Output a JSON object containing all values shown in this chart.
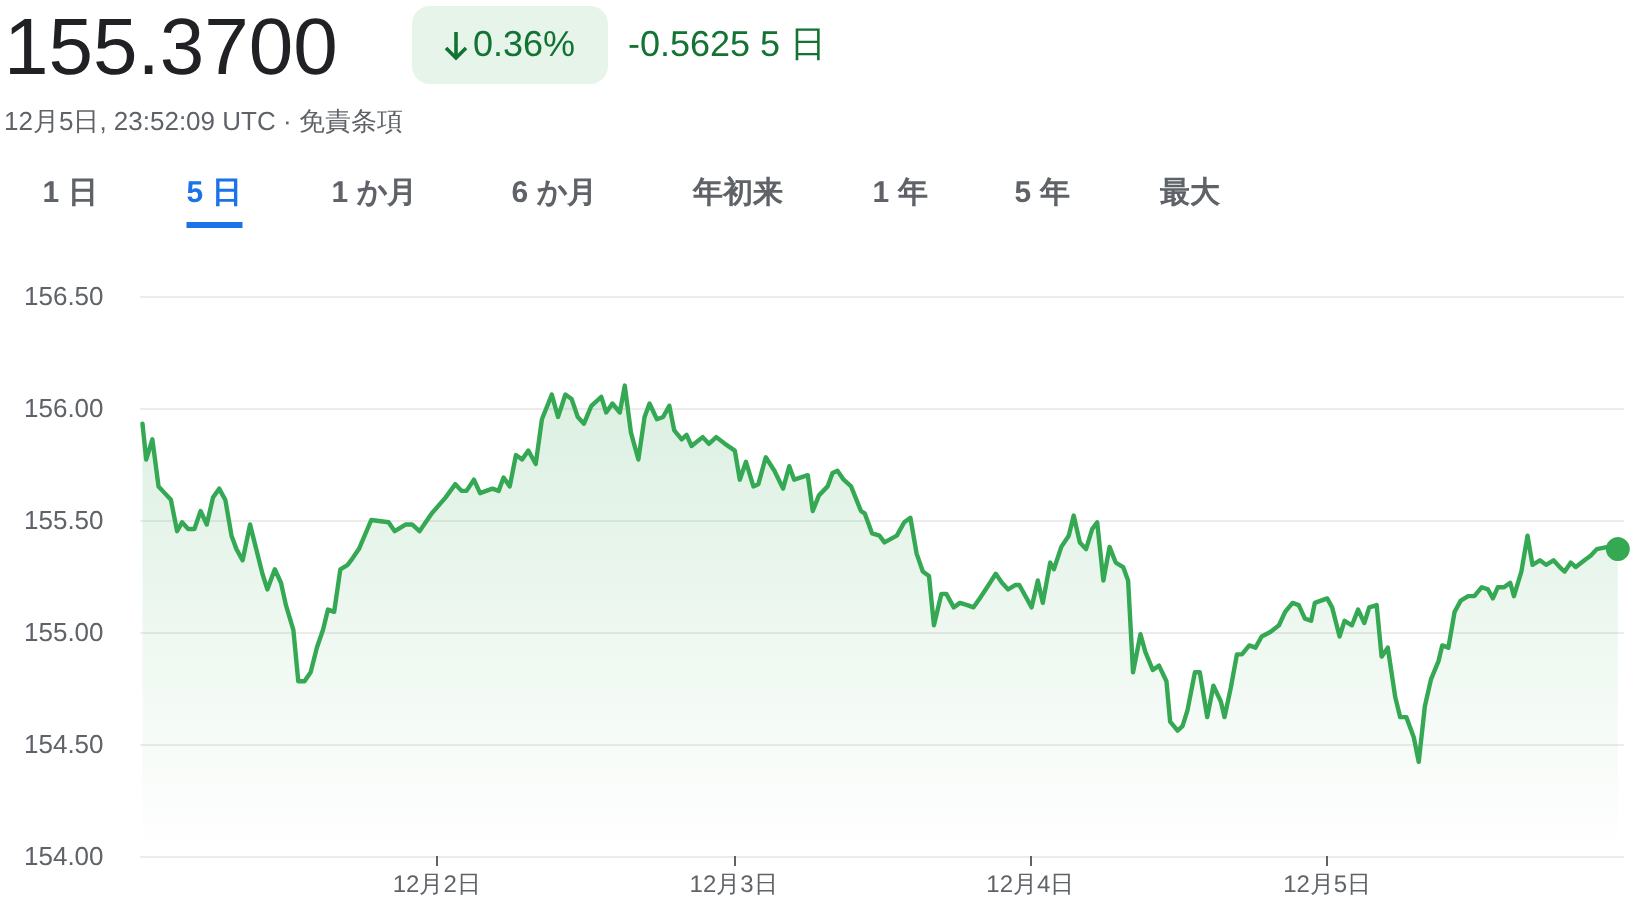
{
  "chart_data": {
    "type": "area",
    "title": "155.3700",
    "subtitle": "12月5日, 23:52:09 UTC · 免責条項",
    "annotations": [
      "0.36%",
      "-0.5625 5 日",
      "1 日",
      "5 日",
      "1 か月",
      "6 か月",
      "年初来",
      "1 年",
      "5 年",
      "最大"
    ],
    "xlim": [
      "--12-01T00:00",
      "--12-06T00:00"
    ],
    "xticks": [
      {
        "value": "--12-02",
        "label": "12月2日"
      },
      {
        "value": "--12-03",
        "label": "12月3日"
      },
      {
        "value": "--12-04",
        "label": "12月4日"
      },
      {
        "value": "--12-05",
        "label": "12月5日"
      }
    ],
    "ylim": [
      154,
      156.5
    ],
    "yticks": [
      {
        "value": 154,
        "label": "154.00"
      },
      {
        "value": 154.5,
        "label": "154.50"
      },
      {
        "value": 155,
        "label": "155.00"
      },
      {
        "value": 155.5,
        "label": "155.50"
      },
      {
        "value": 156,
        "label": "156.00"
      },
      {
        "value": 156.5,
        "label": "156.50"
      }
    ],
    "grid": "y",
    "marker": "none",
    "line_style": "solid",
    "series": [
      {
        "color": "#34a853",
        "x": [
          "--12-01T00:12",
          "--12-01T00:30",
          "--12-01T01:00",
          "--12-01T01:30",
          "--12-01T02:00",
          "--12-01T02:30",
          "--12-01T03:00",
          "--12-01T03:24",
          "--12-01T03:54",
          "--12-01T04:24",
          "--12-01T04:54",
          "--12-01T05:24",
          "--12-01T05:54",
          "--12-01T06:24",
          "--12-01T06:54",
          "--12-01T07:24",
          "--12-01T07:48",
          "--12-01T08:18",
          "--12-01T08:54",
          "--12-01T09:24",
          "--12-01T09:54",
          "--12-01T10:18",
          "--12-01T10:54",
          "--12-01T11:24",
          "--12-01T11:48",
          "--12-01T12:24",
          "--12-01T12:48",
          "--12-01T13:18",
          "--12-01T13:48",
          "--12-01T14:18",
          "--12-01T14:48",
          "--12-01T15:12",
          "--12-01T15:42",
          "--12-01T16:12",
          "--12-01T16:48",
          "--12-01T17:12",
          "--12-01T17:42",
          "--12-01T18:42",
          "--12-01T20:06",
          "--12-01T20:36",
          "--12-01T21:30",
          "--12-01T22:00",
          "--12-01T22:36",
          "--12-01T23:36",
          "--12-02T00:42",
          "--12-02T01:30",
          "--12-02T02:00",
          "--12-02T02:24",
          "--12-02T03:00",
          "--12-02T03:30",
          "--12-02T04:30",
          "--12-02T05:00",
          "--12-02T05:24",
          "--12-02T05:54",
          "--12-02T06:24",
          "--12-02T06:54",
          "--12-02T07:24",
          "--12-02T08:00",
          "--12-02T08:30",
          "--12-02T09:18",
          "--12-02T09:48",
          "--12-02T10:24",
          "--12-02T10:54",
          "--12-02T11:24",
          "--12-02T11:54",
          "--12-02T12:30",
          "--12-02T13:18",
          "--12-02T13:42",
          "--12-02T14:12",
          "--12-02T14:48",
          "--12-02T15:12",
          "--12-02T15:42",
          "--12-02T16:18",
          "--12-02T16:48",
          "--12-02T17:12",
          "--12-02T17:48",
          "--12-02T18:18",
          "--12-02T18:48",
          "--12-02T19:12",
          "--12-02T19:48",
          "--12-02T20:12",
          "--12-02T20:36",
          "--12-02T21:30",
          "--12-02T22:00",
          "--12-02T22:36",
          "--12-02T23:18",
          "--12-03T00:06",
          "--12-03T00:30",
          "--12-03T01:00",
          "--12-03T01:36",
          "--12-03T02:00",
          "--12-03T02:36",
          "--12-03T03:18",
          "--12-03T04:00",
          "--12-03T04:30",
          "--12-03T04:54",
          "--12-03T06:00",
          "--12-03T06:24",
          "--12-03T06:54",
          "--12-03T07:36",
          "--12-03T08:00",
          "--12-03T08:24",
          "--12-03T08:54",
          "--12-03T09:30",
          "--12-03T10:18",
          "--12-03T10:36",
          "--12-03T11:12",
          "--12-03T11:48",
          "--12-03T12:12",
          "--12-03T13:12",
          "--12-03T13:48",
          "--12-03T14:18",
          "--12-03T14:48",
          "--12-03T15:18",
          "--12-03T15:48",
          "--12-03T16:12",
          "--12-03T16:48",
          "--12-03T17:12",
          "--12-03T17:48",
          "--12-03T18:18",
          "--12-03T18:54",
          "--12-03T19:24",
          "--12-03T19:54",
          "--12-03T20:30",
          "--12-03T21:12",
          "--12-03T21:42",
          "--12-03T22:12",
          "--12-03T22:48",
          "--12-03T23:06",
          "--12-03T23:42",
          "--12-04T00:06",
          "--12-04T00:36",
          "--12-04T01:00",
          "--12-04T01:36",
          "--12-04T01:54",
          "--12-04T02:30",
          "--12-04T03:06",
          "--12-04T03:30",
          "--12-04T04:00",
          "--12-04T04:30",
          "--12-04T05:00",
          "--12-04T05:24",
          "--12-04T05:54",
          "--12-04T06:24",
          "--12-04T06:54",
          "--12-04T07:30",
          "--12-04T07:54",
          "--12-04T08:18",
          "--12-04T08:54",
          "--12-04T09:18",
          "--12-04T09:54",
          "--12-04T10:24",
          "--12-04T11:00",
          "--12-04T11:18",
          "--12-04T11:54",
          "--12-04T12:18",
          "--12-04T12:42",
          "--12-04T13:18",
          "--12-04T13:42",
          "--12-04T14:18",
          "--12-04T14:48",
          "--12-04T15:24",
          "--12-04T15:42",
          "--12-04T16:12",
          "--12-04T16:42",
          "--12-04T17:06",
          "--12-04T17:42",
          "--12-04T18:12",
          "--12-04T18:42",
          "--12-04T19:24",
          "--12-04T20:06",
          "--12-04T20:36",
          "--12-04T21:12",
          "--12-04T21:42",
          "--12-04T22:12",
          "--12-04T22:42",
          "--12-04T23:00",
          "--12-05T00:00",
          "--12-05T00:24",
          "--12-05T01:00",
          "--12-05T01:24",
          "--12-05T02:00",
          "--12-05T02:30",
          "--12-05T03:00",
          "--12-05T03:24",
          "--12-05T04:00",
          "--12-05T04:24",
          "--12-05T04:54",
          "--12-05T05:30",
          "--12-05T05:54",
          "--12-05T06:24",
          "--12-05T07:00",
          "--12-05T07:24",
          "--12-05T07:54",
          "--12-05T08:24",
          "--12-05T09:00",
          "--12-05T09:18",
          "--12-05T09:48",
          "--12-05T10:18",
          "--12-05T10:48",
          "--12-05T11:24",
          "--12-05T11:54",
          "--12-05T12:30",
          "--12-05T13:00",
          "--12-05T13:24",
          "--12-05T13:48",
          "--12-05T14:18",
          "--12-05T14:48",
          "--12-05T15:06",
          "--12-05T15:42",
          "--12-05T16:12",
          "--12-05T16:36",
          "--12-05T17:12",
          "--12-05T17:42",
          "--12-05T18:18",
          "--12-05T18:48",
          "--12-05T19:12",
          "--12-05T19:42",
          "--12-05T20:06",
          "--12-05T20:48",
          "--12-05T21:18",
          "--12-05T21:48",
          "--12-05T22:42",
          "--12-05T23:30"
        ],
        "values": [
          155.93,
          155.77,
          155.86,
          155.65,
          155.62,
          155.59,
          155.45,
          155.49,
          155.46,
          155.46,
          155.54,
          155.48,
          155.6,
          155.64,
          155.59,
          155.43,
          155.37,
          155.32,
          155.48,
          155.37,
          155.26,
          155.19,
          155.28,
          155.22,
          155.12,
          155.01,
          154.78,
          154.78,
          154.82,
          154.93,
          155.01,
          155.1,
          155.09,
          155.28,
          155.3,
          155.33,
          155.37,
          155.5,
          155.49,
          155.45,
          155.48,
          155.48,
          155.45,
          155.53,
          155.6,
          155.66,
          155.63,
          155.63,
          155.68,
          155.62,
          155.64,
          155.63,
          155.69,
          155.65,
          155.79,
          155.77,
          155.81,
          155.75,
          155.95,
          156.06,
          155.96,
          156.06,
          156.04,
          155.96,
          155.93,
          156.01,
          156.05,
          155.98,
          156.02,
          155.98,
          156.1,
          155.89,
          155.77,
          155.96,
          156.02,
          155.95,
          155.96,
          156.01,
          155.9,
          155.86,
          155.88,
          155.83,
          155.87,
          155.84,
          155.87,
          155.84,
          155.81,
          155.68,
          155.76,
          155.65,
          155.66,
          155.78,
          155.72,
          155.64,
          155.74,
          155.68,
          155.7,
          155.54,
          155.61,
          155.65,
          155.71,
          155.72,
          155.68,
          155.65,
          155.54,
          155.53,
          155.44,
          155.43,
          155.4,
          155.43,
          155.49,
          155.51,
          155.35,
          155.27,
          155.25,
          155.03,
          155.17,
          155.17,
          155.11,
          155.13,
          155.12,
          155.11,
          155.15,
          155.2,
          155.26,
          155.22,
          155.19,
          155.21,
          155.21,
          155.15,
          155.11,
          155.23,
          155.13,
          155.31,
          155.28,
          155.38,
          155.43,
          155.52,
          155.4,
          155.37,
          155.46,
          155.49,
          155.23,
          155.38,
          155.31,
          155.29,
          155.23,
          154.82,
          154.99,
          154.91,
          154.83,
          154.85,
          154.78,
          154.6,
          154.56,
          154.58,
          154.65,
          154.82,
          154.82,
          154.62,
          154.76,
          154.69,
          154.62,
          154.75,
          154.9,
          154.9,
          154.94,
          154.93,
          154.98,
          155.0,
          155.03,
          155.09,
          155.13,
          155.12,
          155.06,
          155.05,
          155.13,
          155.15,
          155.11,
          154.98,
          155.05,
          155.03,
          155.1,
          155.04,
          155.11,
          155.12,
          154.89,
          154.93,
          154.71,
          154.62,
          154.62,
          154.53,
          154.42,
          154.67,
          154.79,
          154.87,
          154.94,
          154.93,
          155.09,
          155.14,
          155.16,
          155.16,
          155.2,
          155.19,
          155.15,
          155.2,
          155.2,
          155.22,
          155.16,
          155.27,
          155.43,
          155.3,
          155.32,
          155.3,
          155.32,
          155.29,
          155.27,
          155.31,
          155.29,
          155.32,
          155.34,
          155.37,
          155.38,
          155.37
        ]
      }
    ]
  }
}
